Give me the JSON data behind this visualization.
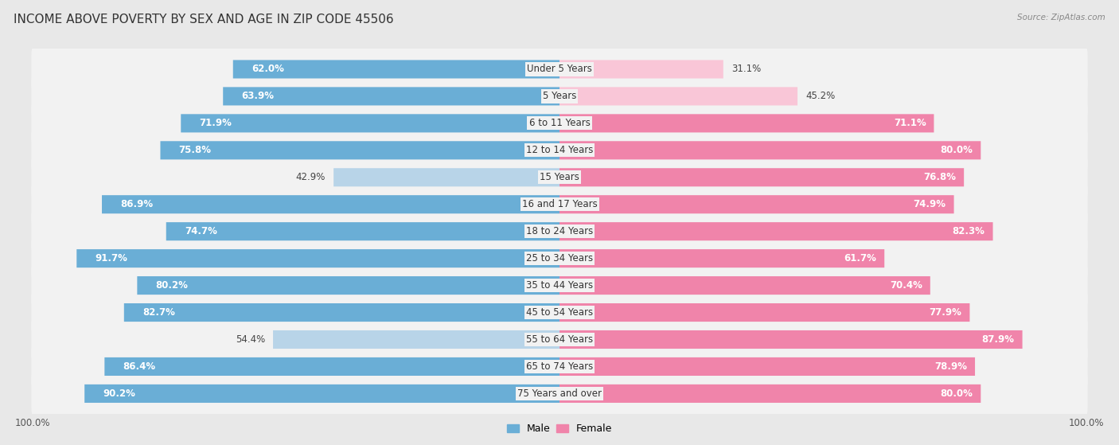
{
  "title": "INCOME ABOVE POVERTY BY SEX AND AGE IN ZIP CODE 45506",
  "source": "Source: ZipAtlas.com",
  "categories": [
    "Under 5 Years",
    "5 Years",
    "6 to 11 Years",
    "12 to 14 Years",
    "15 Years",
    "16 and 17 Years",
    "18 to 24 Years",
    "25 to 34 Years",
    "35 to 44 Years",
    "45 to 54 Years",
    "55 to 64 Years",
    "65 to 74 Years",
    "75 Years and over"
  ],
  "male_values": [
    62.0,
    63.9,
    71.9,
    75.8,
    42.9,
    86.9,
    74.7,
    91.7,
    80.2,
    82.7,
    54.4,
    86.4,
    90.2
  ],
  "female_values": [
    31.1,
    45.2,
    71.1,
    80.0,
    76.8,
    74.9,
    82.3,
    61.7,
    70.4,
    77.9,
    87.9,
    78.9,
    80.0
  ],
  "male_color": "#6aaed6",
  "male_color_light": "#b8d4e8",
  "female_color": "#f084aa",
  "female_color_light": "#f9c6d7",
  "background_color": "#e8e8e8",
  "row_bg_color": "#f2f2f2",
  "title_fontsize": 11,
  "label_fontsize": 8.5,
  "axis_fontsize": 8.5,
  "legend_fontsize": 9,
  "value_threshold": 55
}
